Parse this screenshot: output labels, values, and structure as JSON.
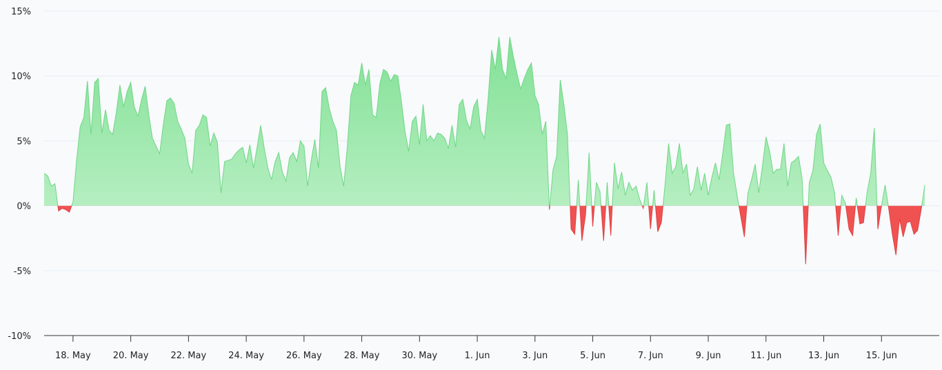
{
  "chart_data": {
    "type": "area",
    "title": "",
    "xlabel": "",
    "ylabel": "",
    "ylim": [
      -10,
      15
    ],
    "y_ticks": [
      15,
      10,
      5,
      0,
      -5,
      -10
    ],
    "y_tick_labels": [
      "15%",
      "10%",
      "5%",
      "0%",
      "-5%",
      "-10%"
    ],
    "x_ticks": [
      "2023-05-18",
      "2023-05-20",
      "2023-05-22",
      "2023-05-24",
      "2023-05-26",
      "2023-05-28",
      "2023-05-30",
      "2023-06-01",
      "2023-06-03",
      "2023-06-05",
      "2023-06-07",
      "2023-06-09",
      "2023-06-11",
      "2023-06-13",
      "2023-06-15"
    ],
    "x_tick_labels": [
      "18. May",
      "20. May",
      "22. May",
      "24. May",
      "26. May",
      "28. May",
      "30. May",
      "1. Jun",
      "3. Jun",
      "5. Jun",
      "7. Jun",
      "9. Jun",
      "11. Jun",
      "13. Jun",
      "15. Jun"
    ],
    "x_range": [
      "2023-05-17T00:00",
      "2023-06-17T00:00"
    ],
    "grid": true,
    "positive_color": "#86e39a",
    "negative_color": "#f05252",
    "series": [
      {
        "values": [
          [
            "2023-05-17T00:00",
            2.5
          ],
          [
            "2023-05-17T03:00",
            2.3
          ],
          [
            "2023-05-17T06:00",
            1.5
          ],
          [
            "2023-05-17T09:00",
            1.7
          ],
          [
            "2023-05-17T12:00",
            -0.4
          ],
          [
            "2023-05-17T15:00",
            -0.2
          ],
          [
            "2023-05-17T18:00",
            -0.3
          ],
          [
            "2023-05-17T21:00",
            -0.5
          ],
          [
            "2023-05-18T00:00",
            0.3
          ],
          [
            "2023-05-18T03:00",
            3.5
          ],
          [
            "2023-05-18T06:00",
            6.1
          ],
          [
            "2023-05-18T09:00",
            6.8
          ],
          [
            "2023-05-18T12:00",
            9.6
          ],
          [
            "2023-05-18T15:00",
            5.5
          ],
          [
            "2023-05-18T18:00",
            9.5
          ],
          [
            "2023-05-18T21:00",
            9.8
          ],
          [
            "2023-05-19T00:00",
            5.6
          ],
          [
            "2023-05-19T03:00",
            7.4
          ],
          [
            "2023-05-19T06:00",
            5.8
          ],
          [
            "2023-05-19T09:00",
            5.5
          ],
          [
            "2023-05-19T12:00",
            7.2
          ],
          [
            "2023-05-19T15:00",
            9.3
          ],
          [
            "2023-05-19T18:00",
            7.6
          ],
          [
            "2023-05-19T21:00",
            8.8
          ],
          [
            "2023-05-20T00:00",
            9.5
          ],
          [
            "2023-05-20T03:00",
            7.6
          ],
          [
            "2023-05-20T06:00",
            6.9
          ],
          [
            "2023-05-20T09:00",
            8.2
          ],
          [
            "2023-05-20T12:00",
            9.2
          ],
          [
            "2023-05-20T15:00",
            7.0
          ],
          [
            "2023-05-20T18:00",
            5.2
          ],
          [
            "2023-05-20T21:00",
            4.6
          ],
          [
            "2023-05-21T00:00",
            4.0
          ],
          [
            "2023-05-21T03:00",
            6.2
          ],
          [
            "2023-05-21T06:00",
            8.1
          ],
          [
            "2023-05-21T09:00",
            8.3
          ],
          [
            "2023-05-21T12:00",
            7.9
          ],
          [
            "2023-05-21T15:00",
            6.5
          ],
          [
            "2023-05-21T18:00",
            5.9
          ],
          [
            "2023-05-21T21:00",
            5.2
          ],
          [
            "2023-05-22T00:00",
            3.2
          ],
          [
            "2023-05-22T03:00",
            2.5
          ],
          [
            "2023-05-22T06:00",
            5.8
          ],
          [
            "2023-05-22T09:00",
            6.2
          ],
          [
            "2023-05-22T12:00",
            7.0
          ],
          [
            "2023-05-22T15:00",
            6.8
          ],
          [
            "2023-05-22T18:00",
            4.6
          ],
          [
            "2023-05-22T21:00",
            5.6
          ],
          [
            "2023-05-23T00:00",
            4.9
          ],
          [
            "2023-05-23T03:00",
            1.0
          ],
          [
            "2023-05-23T06:00",
            3.4
          ],
          [
            "2023-05-23T09:00",
            3.5
          ],
          [
            "2023-05-23T12:00",
            3.6
          ],
          [
            "2023-05-23T15:00",
            4.0
          ],
          [
            "2023-05-23T18:00",
            4.3
          ],
          [
            "2023-05-23T21:00",
            4.5
          ],
          [
            "2023-05-24T00:00",
            3.3
          ],
          [
            "2023-05-24T03:00",
            4.7
          ],
          [
            "2023-05-24T06:00",
            2.9
          ],
          [
            "2023-05-24T09:00",
            4.5
          ],
          [
            "2023-05-24T12:00",
            6.2
          ],
          [
            "2023-05-24T15:00",
            4.4
          ],
          [
            "2023-05-24T18:00",
            2.9
          ],
          [
            "2023-05-24T21:00",
            2.0
          ],
          [
            "2023-05-25T00:00",
            3.4
          ],
          [
            "2023-05-25T03:00",
            4.1
          ],
          [
            "2023-05-25T06:00",
            2.6
          ],
          [
            "2023-05-25T09:00",
            1.9
          ],
          [
            "2023-05-25T12:00",
            3.7
          ],
          [
            "2023-05-25T15:00",
            4.1
          ],
          [
            "2023-05-25T18:00",
            3.4
          ],
          [
            "2023-05-25T21:00",
            5.0
          ],
          [
            "2023-05-26T00:00",
            4.6
          ],
          [
            "2023-05-26T03:00",
            1.5
          ],
          [
            "2023-05-26T06:00",
            3.5
          ],
          [
            "2023-05-26T09:00",
            5.1
          ],
          [
            "2023-05-26T12:00",
            2.9
          ],
          [
            "2023-05-26T15:00",
            8.8
          ],
          [
            "2023-05-26T18:00",
            9.1
          ],
          [
            "2023-05-26T21:00",
            7.5
          ],
          [
            "2023-05-27T00:00",
            6.5
          ],
          [
            "2023-05-27T03:00",
            5.8
          ],
          [
            "2023-05-27T06:00",
            3.0
          ],
          [
            "2023-05-27T09:00",
            1.5
          ],
          [
            "2023-05-27T12:00",
            4.5
          ],
          [
            "2023-05-27T15:00",
            8.5
          ],
          [
            "2023-05-27T18:00",
            9.5
          ],
          [
            "2023-05-27T21:00",
            9.3
          ],
          [
            "2023-05-28T00:00",
            11.0
          ],
          [
            "2023-05-28T03:00",
            9.3
          ],
          [
            "2023-05-28T06:00",
            10.5
          ],
          [
            "2023-05-28T09:00",
            7.0
          ],
          [
            "2023-05-28T12:00",
            6.8
          ],
          [
            "2023-05-28T15:00",
            9.4
          ],
          [
            "2023-05-28T18:00",
            10.5
          ],
          [
            "2023-05-28T21:00",
            10.3
          ],
          [
            "2023-05-29T00:00",
            9.6
          ],
          [
            "2023-05-29T03:00",
            10.1
          ],
          [
            "2023-05-29T06:00",
            10.0
          ],
          [
            "2023-05-29T09:00",
            8.0
          ],
          [
            "2023-05-29T12:00",
            5.7
          ],
          [
            "2023-05-29T15:00",
            4.2
          ],
          [
            "2023-05-29T18:00",
            6.5
          ],
          [
            "2023-05-29T21:00",
            6.9
          ],
          [
            "2023-05-30T00:00",
            4.7
          ],
          [
            "2023-05-30T03:00",
            7.8
          ],
          [
            "2023-05-30T06:00",
            5.0
          ],
          [
            "2023-05-30T09:00",
            5.4
          ],
          [
            "2023-05-30T12:00",
            5.0
          ],
          [
            "2023-05-30T15:00",
            5.6
          ],
          [
            "2023-05-30T18:00",
            5.5
          ],
          [
            "2023-05-30T21:00",
            5.2
          ],
          [
            "2023-05-31T00:00",
            4.4
          ],
          [
            "2023-05-31T03:00",
            6.2
          ],
          [
            "2023-05-31T06:00",
            4.5
          ],
          [
            "2023-05-31T09:00",
            7.8
          ],
          [
            "2023-05-31T12:00",
            8.2
          ],
          [
            "2023-05-31T15:00",
            6.6
          ],
          [
            "2023-05-31T18:00",
            5.9
          ],
          [
            "2023-05-31T21:00",
            7.6
          ],
          [
            "2023-06-01T00:00",
            8.2
          ],
          [
            "2023-06-01T03:00",
            5.8
          ],
          [
            "2023-06-01T06:00",
            5.2
          ],
          [
            "2023-06-01T09:00",
            8.2
          ],
          [
            "2023-06-01T12:00",
            12.0
          ],
          [
            "2023-06-01T15:00",
            10.5
          ],
          [
            "2023-06-01T18:00",
            13.0
          ],
          [
            "2023-06-01T21:00",
            10.5
          ],
          [
            "2023-06-02T00:00",
            9.8
          ],
          [
            "2023-06-02T03:00",
            13.0
          ],
          [
            "2023-06-02T06:00",
            11.5
          ],
          [
            "2023-06-02T09:00",
            10.2
          ],
          [
            "2023-06-02T12:00",
            9.0
          ],
          [
            "2023-06-02T15:00",
            9.8
          ],
          [
            "2023-06-02T18:00",
            10.5
          ],
          [
            "2023-06-02T21:00",
            11.0
          ],
          [
            "2023-06-03T00:00",
            8.5
          ],
          [
            "2023-06-03T03:00",
            7.8
          ],
          [
            "2023-06-03T06:00",
            5.5
          ],
          [
            "2023-06-03T09:00",
            6.5
          ],
          [
            "2023-06-03T12:00",
            -0.3
          ],
          [
            "2023-06-03T15:00",
            2.8
          ],
          [
            "2023-06-03T18:00",
            3.8
          ],
          [
            "2023-06-03T21:00",
            9.7
          ],
          [
            "2023-06-04T00:00",
            7.8
          ],
          [
            "2023-06-04T03:00",
            5.5
          ],
          [
            "2023-06-04T06:00",
            -1.8
          ],
          [
            "2023-06-04T09:00",
            -2.2
          ],
          [
            "2023-06-04T12:00",
            2.0
          ],
          [
            "2023-06-04T15:00",
            -2.7
          ],
          [
            "2023-06-04T18:00",
            -0.7
          ],
          [
            "2023-06-04T21:00",
            4.1
          ],
          [
            "2023-06-05T00:00",
            -1.6
          ],
          [
            "2023-06-05T03:00",
            1.8
          ],
          [
            "2023-06-05T06:00",
            1.1
          ],
          [
            "2023-06-05T09:00",
            -2.7
          ],
          [
            "2023-06-05T12:00",
            1.8
          ],
          [
            "2023-06-05T15:00",
            -2.3
          ],
          [
            "2023-06-05T18:00",
            3.3
          ],
          [
            "2023-06-05T21:00",
            1.3
          ],
          [
            "2023-06-06T00:00",
            2.6
          ],
          [
            "2023-06-06T03:00",
            0.8
          ],
          [
            "2023-06-06T06:00",
            1.8
          ],
          [
            "2023-06-06T09:00",
            1.2
          ],
          [
            "2023-06-06T12:00",
            1.5
          ],
          [
            "2023-06-06T15:00",
            0.5
          ],
          [
            "2023-06-06T18:00",
            -0.2
          ],
          [
            "2023-06-06T21:00",
            1.8
          ],
          [
            "2023-06-07T00:00",
            -1.8
          ],
          [
            "2023-06-07T03:00",
            1.2
          ],
          [
            "2023-06-07T06:00",
            -2.0
          ],
          [
            "2023-06-07T09:00",
            -1.3
          ],
          [
            "2023-06-07T12:00",
            1.5
          ],
          [
            "2023-06-07T15:00",
            4.8
          ],
          [
            "2023-06-07T18:00",
            2.5
          ],
          [
            "2023-06-07T21:00",
            3.0
          ],
          [
            "2023-06-08T00:00",
            4.8
          ],
          [
            "2023-06-08T03:00",
            2.5
          ],
          [
            "2023-06-08T06:00",
            3.2
          ],
          [
            "2023-06-08T09:00",
            0.8
          ],
          [
            "2023-06-08T12:00",
            1.3
          ],
          [
            "2023-06-08T15:00",
            3.0
          ],
          [
            "2023-06-08T18:00",
            1.2
          ],
          [
            "2023-06-08T21:00",
            2.5
          ],
          [
            "2023-06-09T00:00",
            0.8
          ],
          [
            "2023-06-09T03:00",
            2.2
          ],
          [
            "2023-06-09T06:00",
            3.3
          ],
          [
            "2023-06-09T09:00",
            2.0
          ],
          [
            "2023-06-09T12:00",
            4.0
          ],
          [
            "2023-06-09T15:00",
            6.2
          ],
          [
            "2023-06-09T18:00",
            6.3
          ],
          [
            "2023-06-09T21:00",
            2.5
          ],
          [
            "2023-06-10T00:00",
            0.8
          ],
          [
            "2023-06-10T03:00",
            -0.8
          ],
          [
            "2023-06-10T06:00",
            -2.4
          ],
          [
            "2023-06-10T09:00",
            1.0
          ],
          [
            "2023-06-10T12:00",
            2.0
          ],
          [
            "2023-06-10T15:00",
            3.2
          ],
          [
            "2023-06-10T18:00",
            1.0
          ],
          [
            "2023-06-10T21:00",
            3.0
          ],
          [
            "2023-06-11T00:00",
            5.3
          ],
          [
            "2023-06-11T03:00",
            4.2
          ],
          [
            "2023-06-11T06:00",
            2.5
          ],
          [
            "2023-06-11T09:00",
            2.8
          ],
          [
            "2023-06-11T12:00",
            2.8
          ],
          [
            "2023-06-11T15:00",
            4.8
          ],
          [
            "2023-06-11T18:00",
            1.5
          ],
          [
            "2023-06-11T21:00",
            3.3
          ],
          [
            "2023-06-12T00:00",
            3.5
          ],
          [
            "2023-06-12T03:00",
            3.8
          ],
          [
            "2023-06-12T06:00",
            2.1
          ],
          [
            "2023-06-12T09:00",
            -4.5
          ],
          [
            "2023-06-12T12:00",
            1.8
          ],
          [
            "2023-06-12T15:00",
            2.7
          ],
          [
            "2023-06-12T18:00",
            5.5
          ],
          [
            "2023-06-12T21:00",
            6.3
          ],
          [
            "2023-06-13T00:00",
            3.3
          ],
          [
            "2023-06-13T03:00",
            2.7
          ],
          [
            "2023-06-13T06:00",
            2.2
          ],
          [
            "2023-06-13T09:00",
            1.0
          ],
          [
            "2023-06-13T12:00",
            -2.3
          ],
          [
            "2023-06-13T15:00",
            0.8
          ],
          [
            "2023-06-13T18:00",
            0.2
          ],
          [
            "2023-06-13T21:00",
            -1.8
          ],
          [
            "2023-06-14T00:00",
            -2.3
          ],
          [
            "2023-06-14T03:00",
            0.6
          ],
          [
            "2023-06-14T06:00",
            -1.4
          ],
          [
            "2023-06-14T09:00",
            -1.3
          ],
          [
            "2023-06-14T12:00",
            1.0
          ],
          [
            "2023-06-14T15:00",
            2.5
          ],
          [
            "2023-06-14T18:00",
            6.0
          ],
          [
            "2023-06-14T21:00",
            -1.8
          ],
          [
            "2023-06-15T00:00",
            0.0
          ],
          [
            "2023-06-15T03:00",
            1.6
          ],
          [
            "2023-06-15T06:00",
            -0.2
          ],
          [
            "2023-06-15T09:00",
            -2.2
          ],
          [
            "2023-06-15T12:00",
            -3.8
          ],
          [
            "2023-06-15T15:00",
            -1.0
          ],
          [
            "2023-06-15T18:00",
            -2.4
          ],
          [
            "2023-06-15T21:00",
            -1.3
          ],
          [
            "2023-06-16T00:00",
            -1.2
          ],
          [
            "2023-06-16T03:00",
            -2.2
          ],
          [
            "2023-06-16T06:00",
            -1.9
          ],
          [
            "2023-06-16T09:00",
            -0.3
          ],
          [
            "2023-06-16T12:00",
            1.6
          ]
        ]
      }
    ]
  }
}
